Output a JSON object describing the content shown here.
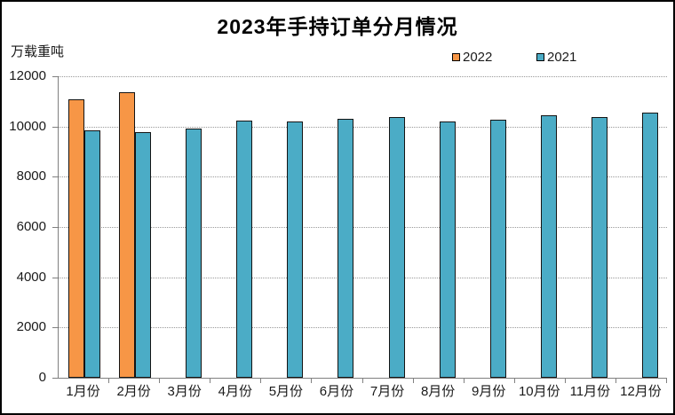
{
  "window": {
    "background_color": "#ffffff",
    "frame_border_color": "#000000"
  },
  "header": {
    "title": "2023年手持订单分月情况"
  },
  "axes": {
    "unit_label": "万载重吨"
  },
  "legend": {
    "position": "top-right",
    "items": [
      {
        "label": "2022",
        "color": "#F79646"
      },
      {
        "label": "2021",
        "color": "#4BACC6"
      }
    ]
  },
  "chart_data": {
    "type": "bar",
    "title": "2023年手持订单分月情况",
    "xlabel": "",
    "ylabel": "万载重吨",
    "categories": [
      "1月份",
      "2月份",
      "3月份",
      "4月份",
      "5月份",
      "6月份",
      "7月份",
      "8月份",
      "9月份",
      "10月份",
      "11月份",
      "12月份"
    ],
    "series": [
      {
        "name": "2022",
        "color": "#F79646",
        "values": [
          11100,
          11370,
          null,
          null,
          null,
          null,
          null,
          null,
          null,
          null,
          null,
          null
        ]
      },
      {
        "name": "2021",
        "color": "#4BACC6",
        "values": [
          9840,
          9780,
          9910,
          10240,
          10200,
          10290,
          10370,
          10210,
          10280,
          10430,
          10360,
          10550
        ]
      }
    ],
    "ylim": [
      0,
      12000
    ],
    "ytick_interval": 2000,
    "ytick_labels": [
      "0",
      "2000",
      "4000",
      "6000",
      "8000",
      "10000",
      "12000"
    ],
    "grid": true,
    "gridline_style": "dotted",
    "bar_outline_color": "#141414",
    "legend_position": "top-right"
  }
}
